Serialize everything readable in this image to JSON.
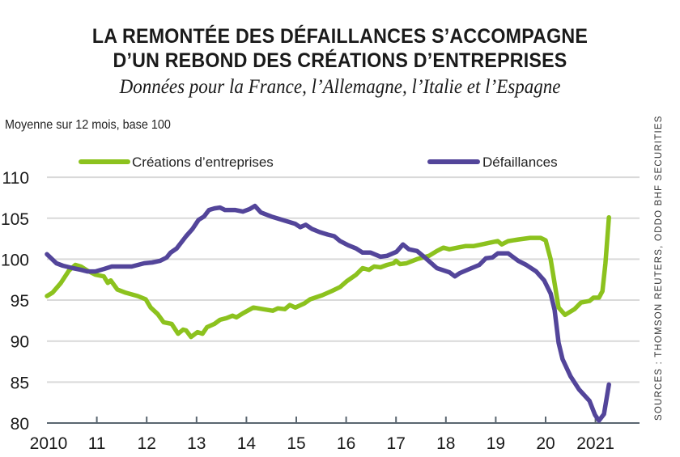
{
  "header": {
    "title_line1": "LA REMONTÉE DES DÉFAILLANCES S’ACCOMPAGNE",
    "title_line2": "D’UN REBOND DES CRÉATIONS D’ENTREPRISES",
    "subtitle": "Données pour la France, l’Allemagne, l’Italie et l’Espagne",
    "unit_label": "Moyenne sur 12 mois, base 100",
    "source": "SOURCES : THOMSON REUTERS, ODDO BHF SECURITIES"
  },
  "colors": {
    "creations": "#8cc21e",
    "defaillances": "#53459a",
    "grid": "#d9d9d9",
    "axis": "#5a6670"
  },
  "chart_data": {
    "type": "line",
    "title": "LA REMONTÉE DES DÉFAILLANCES S’ACCOMPAGNE D’UN REBOND DES CRÉATIONS D’ENTREPRISES",
    "subtitle": "Données pour la France, l’Allemagne, l’Italie et l’Espagne",
    "ylabel": "Moyenne sur 12 mois, base 100",
    "xlabel": "",
    "xlim": [
      2010,
      2021.9
    ],
    "ylim": [
      80,
      110
    ],
    "yticks": [
      80,
      85,
      90,
      95,
      100,
      105,
      110
    ],
    "xticks": [
      2010,
      2011,
      2012,
      2013,
      2014,
      2015,
      2016,
      2017,
      2018,
      2019,
      2020,
      2021
    ],
    "xtick_labels": [
      "2010",
      "11",
      "12",
      "13",
      "14",
      "15",
      "16",
      "17",
      "18",
      "19",
      "20",
      "2021"
    ],
    "grid": true,
    "legend": "top",
    "series": [
      {
        "name": "Créations d’entreprises",
        "color_key": "creations",
        "x": [
          2010.0,
          2010.11,
          2010.28,
          2010.44,
          2010.57,
          2010.68,
          2010.81,
          2010.97,
          2011.14,
          2011.22,
          2011.28,
          2011.41,
          2011.58,
          2011.82,
          2011.98,
          2012.08,
          2012.22,
          2012.34,
          2012.5,
          2012.63,
          2012.73,
          2012.79,
          2012.89,
          2013.02,
          2013.12,
          2013.21,
          2013.36,
          2013.47,
          2013.6,
          2013.72,
          2013.8,
          2013.93,
          2014.14,
          2014.33,
          2014.53,
          2014.63,
          2014.77,
          2014.87,
          2014.98,
          2015.16,
          2015.28,
          2015.52,
          2015.71,
          2015.88,
          2016.01,
          2016.2,
          2016.33,
          2016.46,
          2016.56,
          2016.69,
          2016.82,
          2016.95,
          2017.0,
          2017.08,
          2017.21,
          2017.42,
          2017.66,
          2017.82,
          2017.95,
          2018.07,
          2018.23,
          2018.4,
          2018.56,
          2018.72,
          2018.88,
          2019.04,
          2019.12,
          2019.25,
          2019.45,
          2019.69,
          2019.9,
          2020.0,
          2020.1,
          2020.26,
          2020.39,
          2020.58,
          2020.71,
          2020.88,
          2020.96,
          2021.07,
          2021.14,
          2021.2,
          2021.27
        ],
        "y": [
          95.5,
          95.9,
          97.1,
          98.6,
          99.3,
          99.1,
          98.6,
          98.1,
          97.9,
          97.1,
          97.4,
          96.3,
          95.9,
          95.5,
          95.1,
          94.1,
          93.3,
          92.3,
          92.1,
          90.9,
          91.4,
          91.3,
          90.5,
          91.1,
          90.9,
          91.7,
          92.1,
          92.6,
          92.8,
          93.1,
          92.9,
          93.4,
          94.1,
          93.9,
          93.7,
          94.0,
          93.9,
          94.4,
          94.1,
          94.6,
          95.1,
          95.6,
          96.1,
          96.6,
          97.3,
          98.1,
          98.9,
          98.7,
          99.1,
          99.0,
          99.3,
          99.5,
          99.8,
          99.4,
          99.5,
          100.0,
          100.4,
          101.0,
          101.4,
          101.2,
          101.4,
          101.6,
          101.6,
          101.8,
          102.0,
          102.2,
          101.8,
          102.2,
          102.4,
          102.6,
          102.6,
          102.3,
          100.0,
          94.1,
          93.2,
          93.9,
          94.7,
          94.9,
          95.3,
          95.3,
          96.1,
          99.5,
          105.1
        ]
      },
      {
        "name": "Défaillances",
        "color_key": "defaillances",
        "x": [
          2010.0,
          2010.19,
          2010.32,
          2010.52,
          2010.68,
          2010.81,
          2010.97,
          2011.14,
          2011.3,
          2011.46,
          2011.7,
          2011.95,
          2012.11,
          2012.27,
          2012.4,
          2012.48,
          2012.6,
          2012.79,
          2012.92,
          2013.04,
          2013.15,
          2013.25,
          2013.36,
          2013.47,
          2013.57,
          2013.77,
          2013.93,
          2014.06,
          2014.17,
          2014.29,
          2014.5,
          2014.66,
          2014.82,
          2014.98,
          2015.08,
          2015.19,
          2015.31,
          2015.47,
          2015.63,
          2015.76,
          2015.88,
          2016.04,
          2016.2,
          2016.33,
          2016.49,
          2016.69,
          2016.82,
          2017.01,
          2017.14,
          2017.26,
          2017.42,
          2017.58,
          2017.82,
          2018.07,
          2018.18,
          2018.28,
          2018.47,
          2018.67,
          2018.8,
          2018.93,
          2019.04,
          2019.25,
          2019.45,
          2019.61,
          2019.81,
          2019.97,
          2020.1,
          2020.18,
          2020.26,
          2020.34,
          2020.5,
          2020.67,
          2020.88,
          2020.99,
          2021.07,
          2021.17,
          2021.27
        ],
        "y": [
          100.6,
          99.5,
          99.2,
          98.9,
          98.7,
          98.5,
          98.5,
          98.8,
          99.1,
          99.1,
          99.1,
          99.5,
          99.6,
          99.8,
          100.2,
          100.8,
          101.3,
          102.8,
          103.7,
          104.8,
          105.2,
          106.0,
          106.2,
          106.3,
          106.0,
          106.0,
          105.8,
          106.1,
          106.5,
          105.7,
          105.2,
          104.9,
          104.6,
          104.3,
          103.9,
          104.2,
          103.7,
          103.3,
          103.0,
          102.8,
          102.2,
          101.7,
          101.3,
          100.8,
          100.8,
          100.3,
          100.4,
          100.9,
          101.8,
          101.2,
          101.0,
          100.2,
          98.9,
          98.4,
          97.9,
          98.3,
          98.8,
          99.3,
          100.1,
          100.2,
          100.7,
          100.7,
          99.8,
          99.3,
          98.5,
          97.4,
          95.8,
          93.8,
          89.8,
          87.8,
          85.7,
          84.1,
          82.7,
          81.0,
          80.3,
          81.1,
          84.7
        ]
      }
    ]
  }
}
